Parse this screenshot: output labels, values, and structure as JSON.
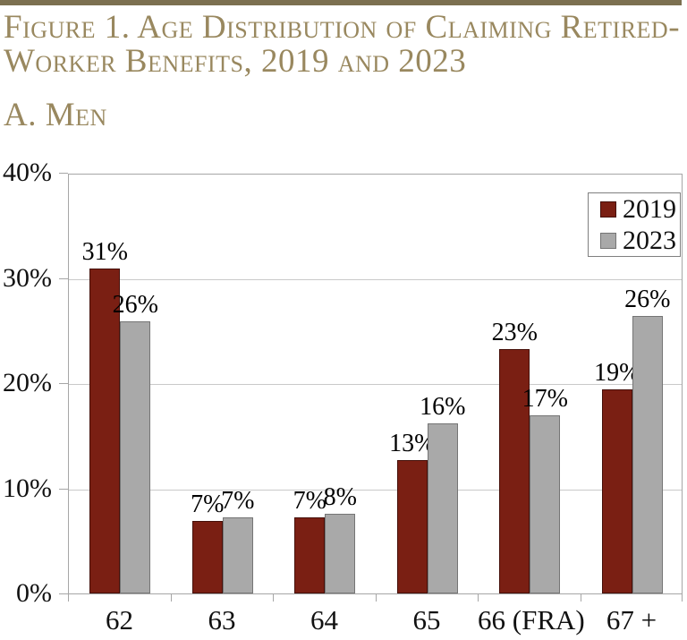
{
  "figure": {
    "title_line1": "Figure 1. Age Distribution of Claiming Retired-",
    "title_line2": "Worker Benefits, 2019 and 2023",
    "panel_label": "A. Men"
  },
  "colors": {
    "top_rule": "#7C7050",
    "title_text": "#99885F",
    "series_2019": "#7A1F13",
    "series_2023": "#A9A9A9",
    "axis_frame": "#A6A6A6",
    "gridline": "#C9C9C9",
    "text": "#111111"
  },
  "chart_data": {
    "type": "bar",
    "title": "Figure 1. Age Distribution of Claiming Retired-Worker Benefits, 2019 and 2023",
    "panel": "A. Men",
    "categories": [
      "62",
      "63",
      "64",
      "65",
      "66 (FRA)",
      "67 +"
    ],
    "series": [
      {
        "name": "2019",
        "color": "#7A1F13",
        "border_color": "#45100A",
        "values": [
          31,
          7,
          7,
          13,
          23,
          19
        ],
        "values_precise": [
          30.9,
          6.9,
          7.2,
          12.7,
          23.2,
          19.4
        ],
        "labels": [
          "31%",
          "7%",
          "7%",
          "13%",
          "23%",
          "19%"
        ]
      },
      {
        "name": "2023",
        "color": "#A9A9A9",
        "border_color": "#757575",
        "values": [
          26,
          7,
          8,
          16,
          17,
          26
        ],
        "values_precise": [
          25.9,
          7.2,
          7.6,
          16.2,
          16.9,
          26.4
        ],
        "labels": [
          "26%",
          "7%",
          "8%",
          "16%",
          "17%",
          "26%"
        ]
      }
    ],
    "ylim": [
      0,
      40
    ],
    "ytick_values": [
      0,
      10,
      20,
      30,
      40
    ],
    "ytick_labels": [
      "0%",
      "10%",
      "20%",
      "30%",
      "40%"
    ],
    "gridlines": [
      10,
      20,
      30
    ],
    "grid": true,
    "legend_position": "top-right"
  }
}
